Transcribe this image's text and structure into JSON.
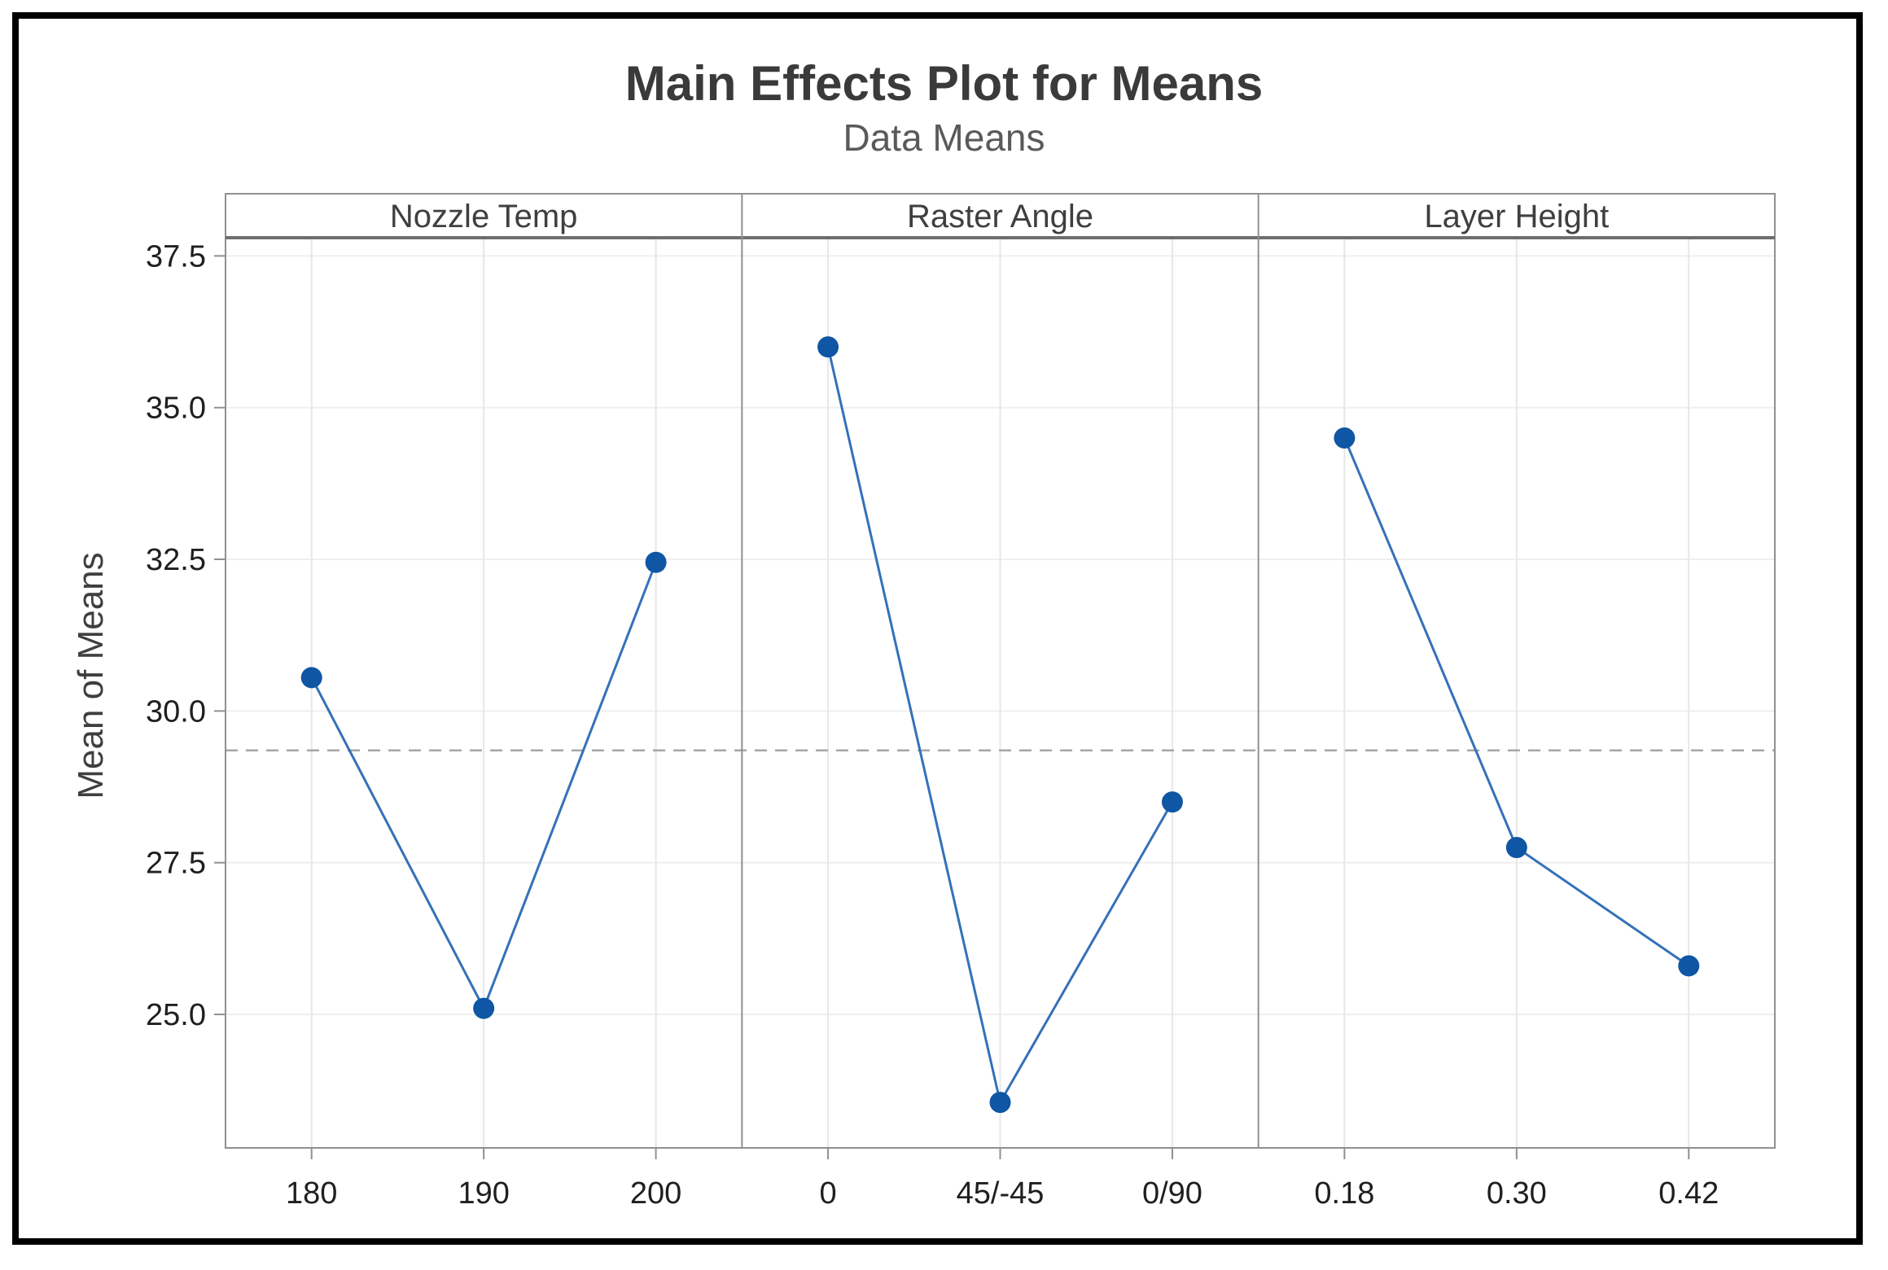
{
  "title": {
    "text": "Main Effects Plot for Means",
    "subtitle": "Data Means"
  },
  "chart_data": {
    "type": "line",
    "title": "Main Effects Plot for Means",
    "subtitle": "Data Means",
    "ylabel": "Mean of Means",
    "ylim": [
      22.8,
      37.8
    ],
    "yticks": [
      37.5,
      35.0,
      32.5,
      30.0,
      27.5,
      25.0
    ],
    "ytick_labels": [
      "37.5",
      "35.0",
      "32.5",
      "30.0",
      "27.5",
      "25.0"
    ],
    "reference_line": {
      "value": 29.35,
      "style": "dashed"
    },
    "grid": true,
    "legend": "none",
    "panels": [
      {
        "header": "Nozzle Temp",
        "categories": [
          "180",
          "190",
          "200"
        ],
        "values": [
          30.55,
          25.1,
          32.45
        ]
      },
      {
        "header": "Raster Angle",
        "categories": [
          "0",
          "45/-45",
          "0/90"
        ],
        "values": [
          36.0,
          23.55,
          28.5
        ]
      },
      {
        "header": "Layer Height",
        "categories": [
          "0.18",
          "0.30",
          "0.42"
        ],
        "values": [
          34.5,
          27.75,
          25.8
        ]
      }
    ],
    "colors": {
      "marker": "#0F56A4",
      "line": "#3471B9",
      "grid_h": "#EFEFEF",
      "grid_v": "#E7E7E7",
      "axis": "#909090",
      "header_rule": "#6E6E6E",
      "reference": "#A6A6A6",
      "tick_text": "#1F1F1F",
      "header_text": "#3F3F3F",
      "frame": "#000000"
    }
  }
}
